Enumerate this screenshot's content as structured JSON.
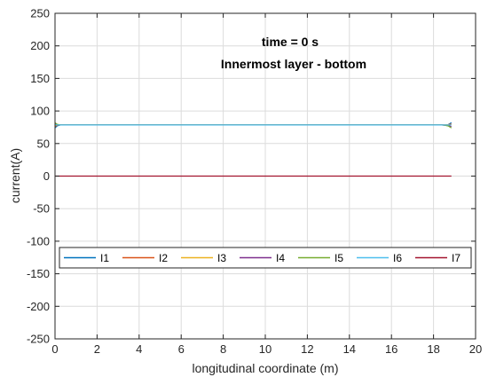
{
  "chart_data": {
    "type": "line",
    "title": "",
    "annotations": [
      "time = 0 s",
      "Innermost layer - bottom"
    ],
    "xlabel": "longitudinal coordinate (m)",
    "ylabel": "current(A)",
    "xlim": [
      0,
      20
    ],
    "ylim": [
      -250,
      250
    ],
    "xticks": [
      0,
      2,
      4,
      6,
      8,
      10,
      12,
      14,
      16,
      18,
      20
    ],
    "yticks": [
      -250,
      -200,
      -150,
      -100,
      -50,
      0,
      50,
      100,
      150,
      200,
      250
    ],
    "grid": true,
    "legend": "inside-bottom, horizontal",
    "series": [
      {
        "name": "I1",
        "color": "#0072bd",
        "x": [
          0,
          0.1,
          0.25,
          0.4,
          18.4,
          18.55,
          18.7,
          18.85
        ],
        "y": [
          74,
          77,
          78.5,
          78.5,
          78.5,
          78.5,
          79,
          82
        ]
      },
      {
        "name": "I2",
        "color": "#d95319",
        "x": [
          0,
          0.1,
          0.25,
          0.4,
          18.4,
          18.55,
          18.7,
          18.85
        ],
        "y": [
          76,
          78,
          78.5,
          78.5,
          78.5,
          78.5,
          79,
          80
        ]
      },
      {
        "name": "I3",
        "color": "#edb120",
        "x": [
          0,
          0.1,
          0.25,
          0.4,
          18.4,
          18.55,
          18.7,
          18.85
        ],
        "y": [
          78,
          78.5,
          78.5,
          78.5,
          78.5,
          78.5,
          78.5,
          78.5
        ]
      },
      {
        "name": "I4",
        "color": "#7e2f8e",
        "x": [
          0,
          0.1,
          0.25,
          0.4,
          18.4,
          18.55,
          18.7,
          18.85
        ],
        "y": [
          80,
          79,
          78.5,
          78.5,
          78.5,
          78,
          77.5,
          76
        ]
      },
      {
        "name": "I5",
        "color": "#77ac30",
        "x": [
          0,
          0.1,
          0.25,
          0.4,
          18.4,
          18.55,
          18.7,
          18.85
        ],
        "y": [
          82,
          79.5,
          78.5,
          78.5,
          78.5,
          78,
          77,
          74
        ]
      },
      {
        "name": "I6",
        "color": "#4dbeee",
        "x": [
          0,
          0.1,
          0.25,
          0.4,
          18.4,
          18.55,
          18.7,
          18.85
        ],
        "y": [
          79,
          78.5,
          78.5,
          78.5,
          78.5,
          78.5,
          78.5,
          78.5
        ]
      },
      {
        "name": "I7",
        "color": "#a2142f",
        "x": [
          0,
          18.85
        ],
        "y": [
          0,
          0
        ]
      }
    ]
  }
}
